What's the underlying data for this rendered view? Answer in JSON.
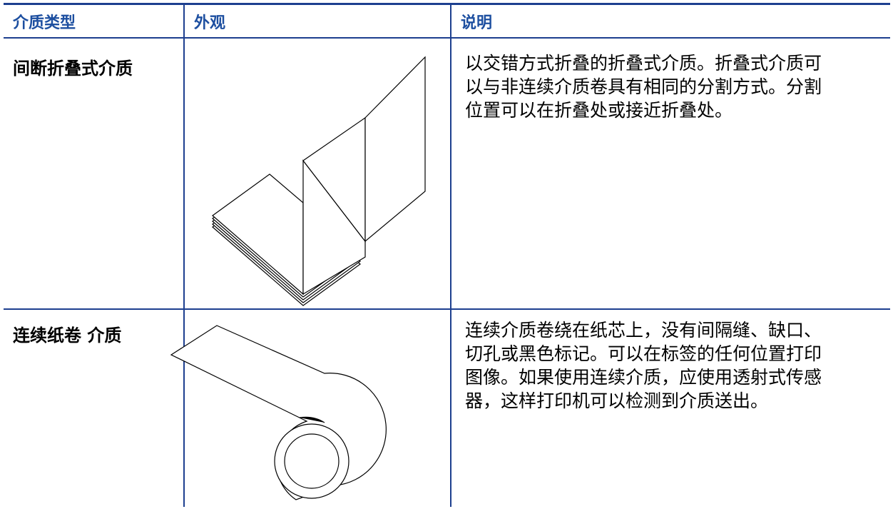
{
  "table": {
    "header": [
      "介质类型",
      "外观",
      "说明"
    ],
    "rows": [
      {
        "type": "间断折叠式介质",
        "description": [
          "以交错方式折叠的折叠式介质。折叠式介质可",
          "以与非连续介质卷具有相同的分割方式。分割",
          "位置可以在折叠处或接近折叠处。"
        ]
      },
      {
        "type": "连续纸卷 介质",
        "description": [
          "连续介质卷绕在纸芯上，没有间隔缝、缺口、",
          "切孔或黑色标记。可以在标签的任何位置打印",
          "图像。如果使用连续介质，应使用透射式传感",
          "器，这样打印机可以检测到介质送出。"
        ]
      }
    ]
  }
}
